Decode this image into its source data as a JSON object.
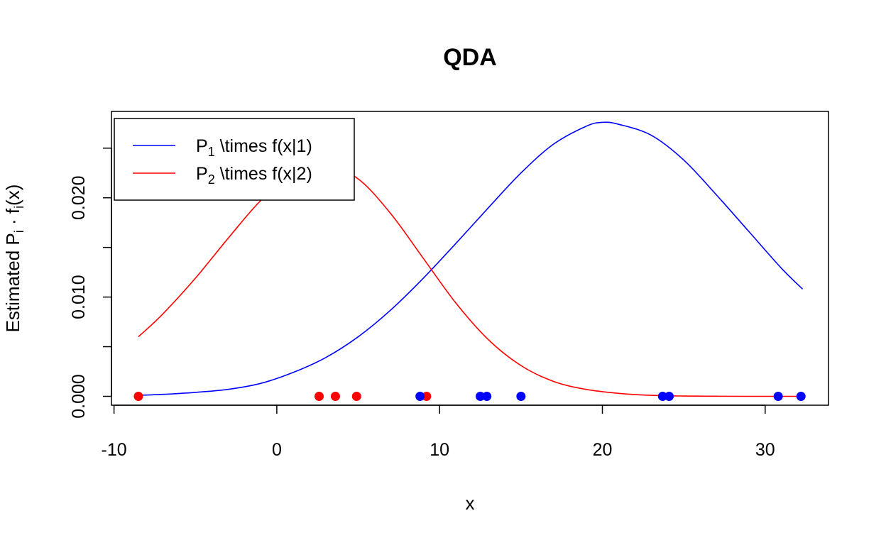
{
  "chart_data": {
    "type": "line",
    "title": "QDA",
    "xlabel": "x",
    "ylabel": {
      "text": "Estimated P",
      "sub1": "i",
      "dot": " · f",
      "sub2": "i",
      "tail": "(x)"
    },
    "xlim": [
      -10,
      34
    ],
    "ylim": [
      0,
      0.027
    ],
    "x_ticks": [
      -10,
      0,
      10,
      20,
      30
    ],
    "x_tick_labels": [
      "-10",
      "0",
      "10",
      "20",
      "30"
    ],
    "y_ticks": [
      0,
      0.005,
      0.01,
      0.015,
      0.02,
      0.025
    ],
    "y_tick_labels": [
      {
        "value": 0,
        "label": "0.000"
      },
      {
        "value": 0.01,
        "label": "0.010"
      },
      {
        "value": 0.02,
        "label": "0.020"
      }
    ],
    "legend": {
      "position": "top-left",
      "entries": [
        {
          "prefix": "P",
          "sub": "1",
          "suffix": " \\times f(x|1)",
          "color": "#0000ff"
        },
        {
          "prefix": "P",
          "sub": "2",
          "suffix": " \\times f(x|2)",
          "color": "#ff0000"
        }
      ]
    },
    "series": [
      {
        "color": "#0000ff",
        "x": [
          -8.5,
          -7,
          -5,
          -3,
          -1,
          1,
          3,
          5,
          7,
          9,
          11,
          13,
          15,
          17,
          19,
          20,
          21,
          23,
          25,
          27,
          29,
          31,
          32.3
        ],
        "y": [
          0.0001,
          0.0002,
          0.0004,
          0.0007,
          0.0013,
          0.0024,
          0.0039,
          0.006,
          0.0087,
          0.0119,
          0.0154,
          0.019,
          0.0225,
          0.0254,
          0.0272,
          0.0276,
          0.0274,
          0.0263,
          0.0238,
          0.0203,
          0.0166,
          0.0129,
          0.0108
        ]
      },
      {
        "color": "#ff0000",
        "x": [
          -8.5,
          -7,
          -5,
          -3,
          -1,
          1,
          3,
          5,
          7,
          9,
          11,
          13,
          15,
          17,
          19,
          21,
          23,
          25,
          27,
          29,
          31,
          32.3
        ],
        "y": [
          0.006,
          0.0083,
          0.0119,
          0.0159,
          0.0197,
          0.0224,
          0.0233,
          0.0219,
          0.0184,
          0.0139,
          0.0094,
          0.0057,
          0.0031,
          0.0015,
          0.0007,
          0.0003,
          0.0001,
          3e-05,
          1e-05,
          0.0,
          0.0,
          0.0
        ]
      }
    ],
    "points": [
      {
        "x": -8.5,
        "y": 0,
        "color": "#ff0000"
      },
      {
        "x": 2.6,
        "y": 0,
        "color": "#ff0000"
      },
      {
        "x": 3.6,
        "y": 0,
        "color": "#ff0000"
      },
      {
        "x": 4.9,
        "y": 0,
        "color": "#ff0000"
      },
      {
        "x": 9.2,
        "y": 0,
        "color": "#ff0000"
      },
      {
        "x": 8.8,
        "y": 0,
        "color": "#0000ff"
      },
      {
        "x": 12.5,
        "y": 0,
        "color": "#0000ff"
      },
      {
        "x": 12.9,
        "y": 0,
        "color": "#0000ff"
      },
      {
        "x": 15.0,
        "y": 0,
        "color": "#0000ff"
      },
      {
        "x": 23.7,
        "y": 0,
        "color": "#0000ff"
      },
      {
        "x": 24.1,
        "y": 0,
        "color": "#0000ff"
      },
      {
        "x": 30.8,
        "y": 0,
        "color": "#0000ff"
      },
      {
        "x": 32.2,
        "y": 0,
        "color": "#0000ff"
      }
    ]
  }
}
